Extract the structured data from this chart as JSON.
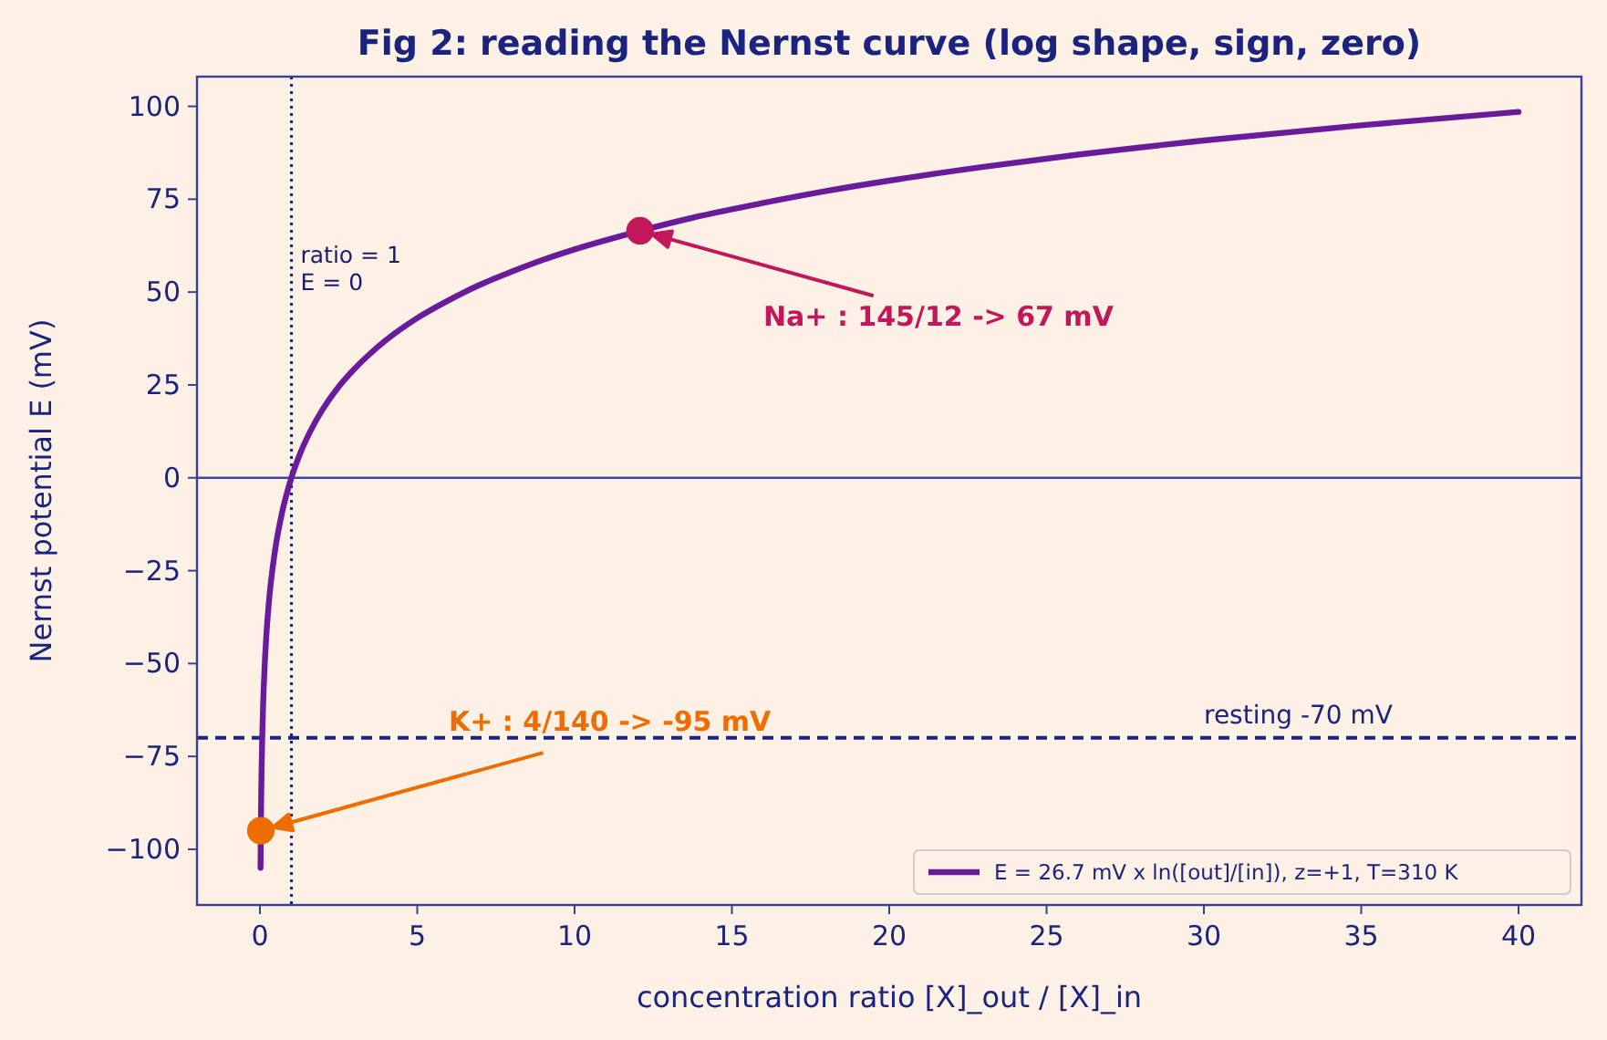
{
  "chart_data": {
    "type": "line",
    "title": "Fig 2: reading the Nernst curve (log shape, sign, zero)",
    "xlabel": "concentration ratio  [X]_out / [X]_in",
    "ylabel": "Nernst potential  E  (mV)",
    "series": [
      {
        "name": "E = 26.7 mV x ln([out]/[in]),  z=+1, T=310 K",
        "color": "#6a1b9a",
        "x": [
          0.0196,
          0.025,
          0.03,
          0.04,
          0.05,
          0.07,
          0.1,
          0.15,
          0.2,
          0.3,
          0.4,
          0.5,
          0.7,
          1,
          1.3,
          1.6,
          2,
          2.5,
          3,
          3.5,
          4,
          5,
          6,
          7,
          8,
          9,
          10,
          12,
          14,
          16,
          18,
          20,
          23,
          26,
          30,
          35,
          40
        ],
        "values": [
          -105,
          -98.5,
          -93.6,
          -85.9,
          -80,
          -71,
          -61.5,
          -50.7,
          -43,
          -32.1,
          -24.5,
          -18.5,
          -9.5,
          0,
          7,
          12.5,
          18.5,
          24.5,
          29.3,
          33.4,
          37,
          43,
          47.8,
          52,
          55.5,
          58.7,
          61.5,
          66.3,
          70.5,
          74,
          77.2,
          80,
          83.7,
          87,
          90.8,
          94.9,
          98.5
        ]
      },
      {
        "type": "scatter",
        "x": [
          12.08,
          0.0286
        ],
        "values": [
          66.5,
          -95
        ],
        "colors": [
          "#c2185b",
          "#ef6c00"
        ],
        "marker": "circle"
      }
    ],
    "annotations": [
      "Na+ : 145/12 -> 67 mV",
      "K+ : 4/140 -> -95 mV"
    ],
    "ref_lines": [
      {
        "axis": "y",
        "value": 0,
        "color": "#3949ab",
        "line_style": "solid"
      },
      {
        "axis": "x",
        "value": 1,
        "label": "ratio = 1\nE = 0",
        "color": "#1a1a6e",
        "line_style": "dotted"
      },
      {
        "axis": "y",
        "value": -70,
        "label": "resting -70 mV",
        "color": "#1a237e",
        "line_style": "dashed"
      }
    ],
    "xlim": [
      -2,
      42
    ],
    "ylim": [
      -115,
      108
    ],
    "xticks": [
      0,
      5,
      10,
      15,
      20,
      25,
      30,
      35,
      40
    ],
    "yticks": [
      {
        "value": -100,
        "label": "−100"
      },
      {
        "value": -75,
        "label": "−75"
      },
      {
        "value": -50,
        "label": "−50"
      },
      {
        "value": -25,
        "label": "−25"
      },
      0,
      25,
      50,
      75,
      100
    ],
    "legend": "bottom right",
    "grid": false,
    "marker": "none",
    "line_style": "solid"
  }
}
